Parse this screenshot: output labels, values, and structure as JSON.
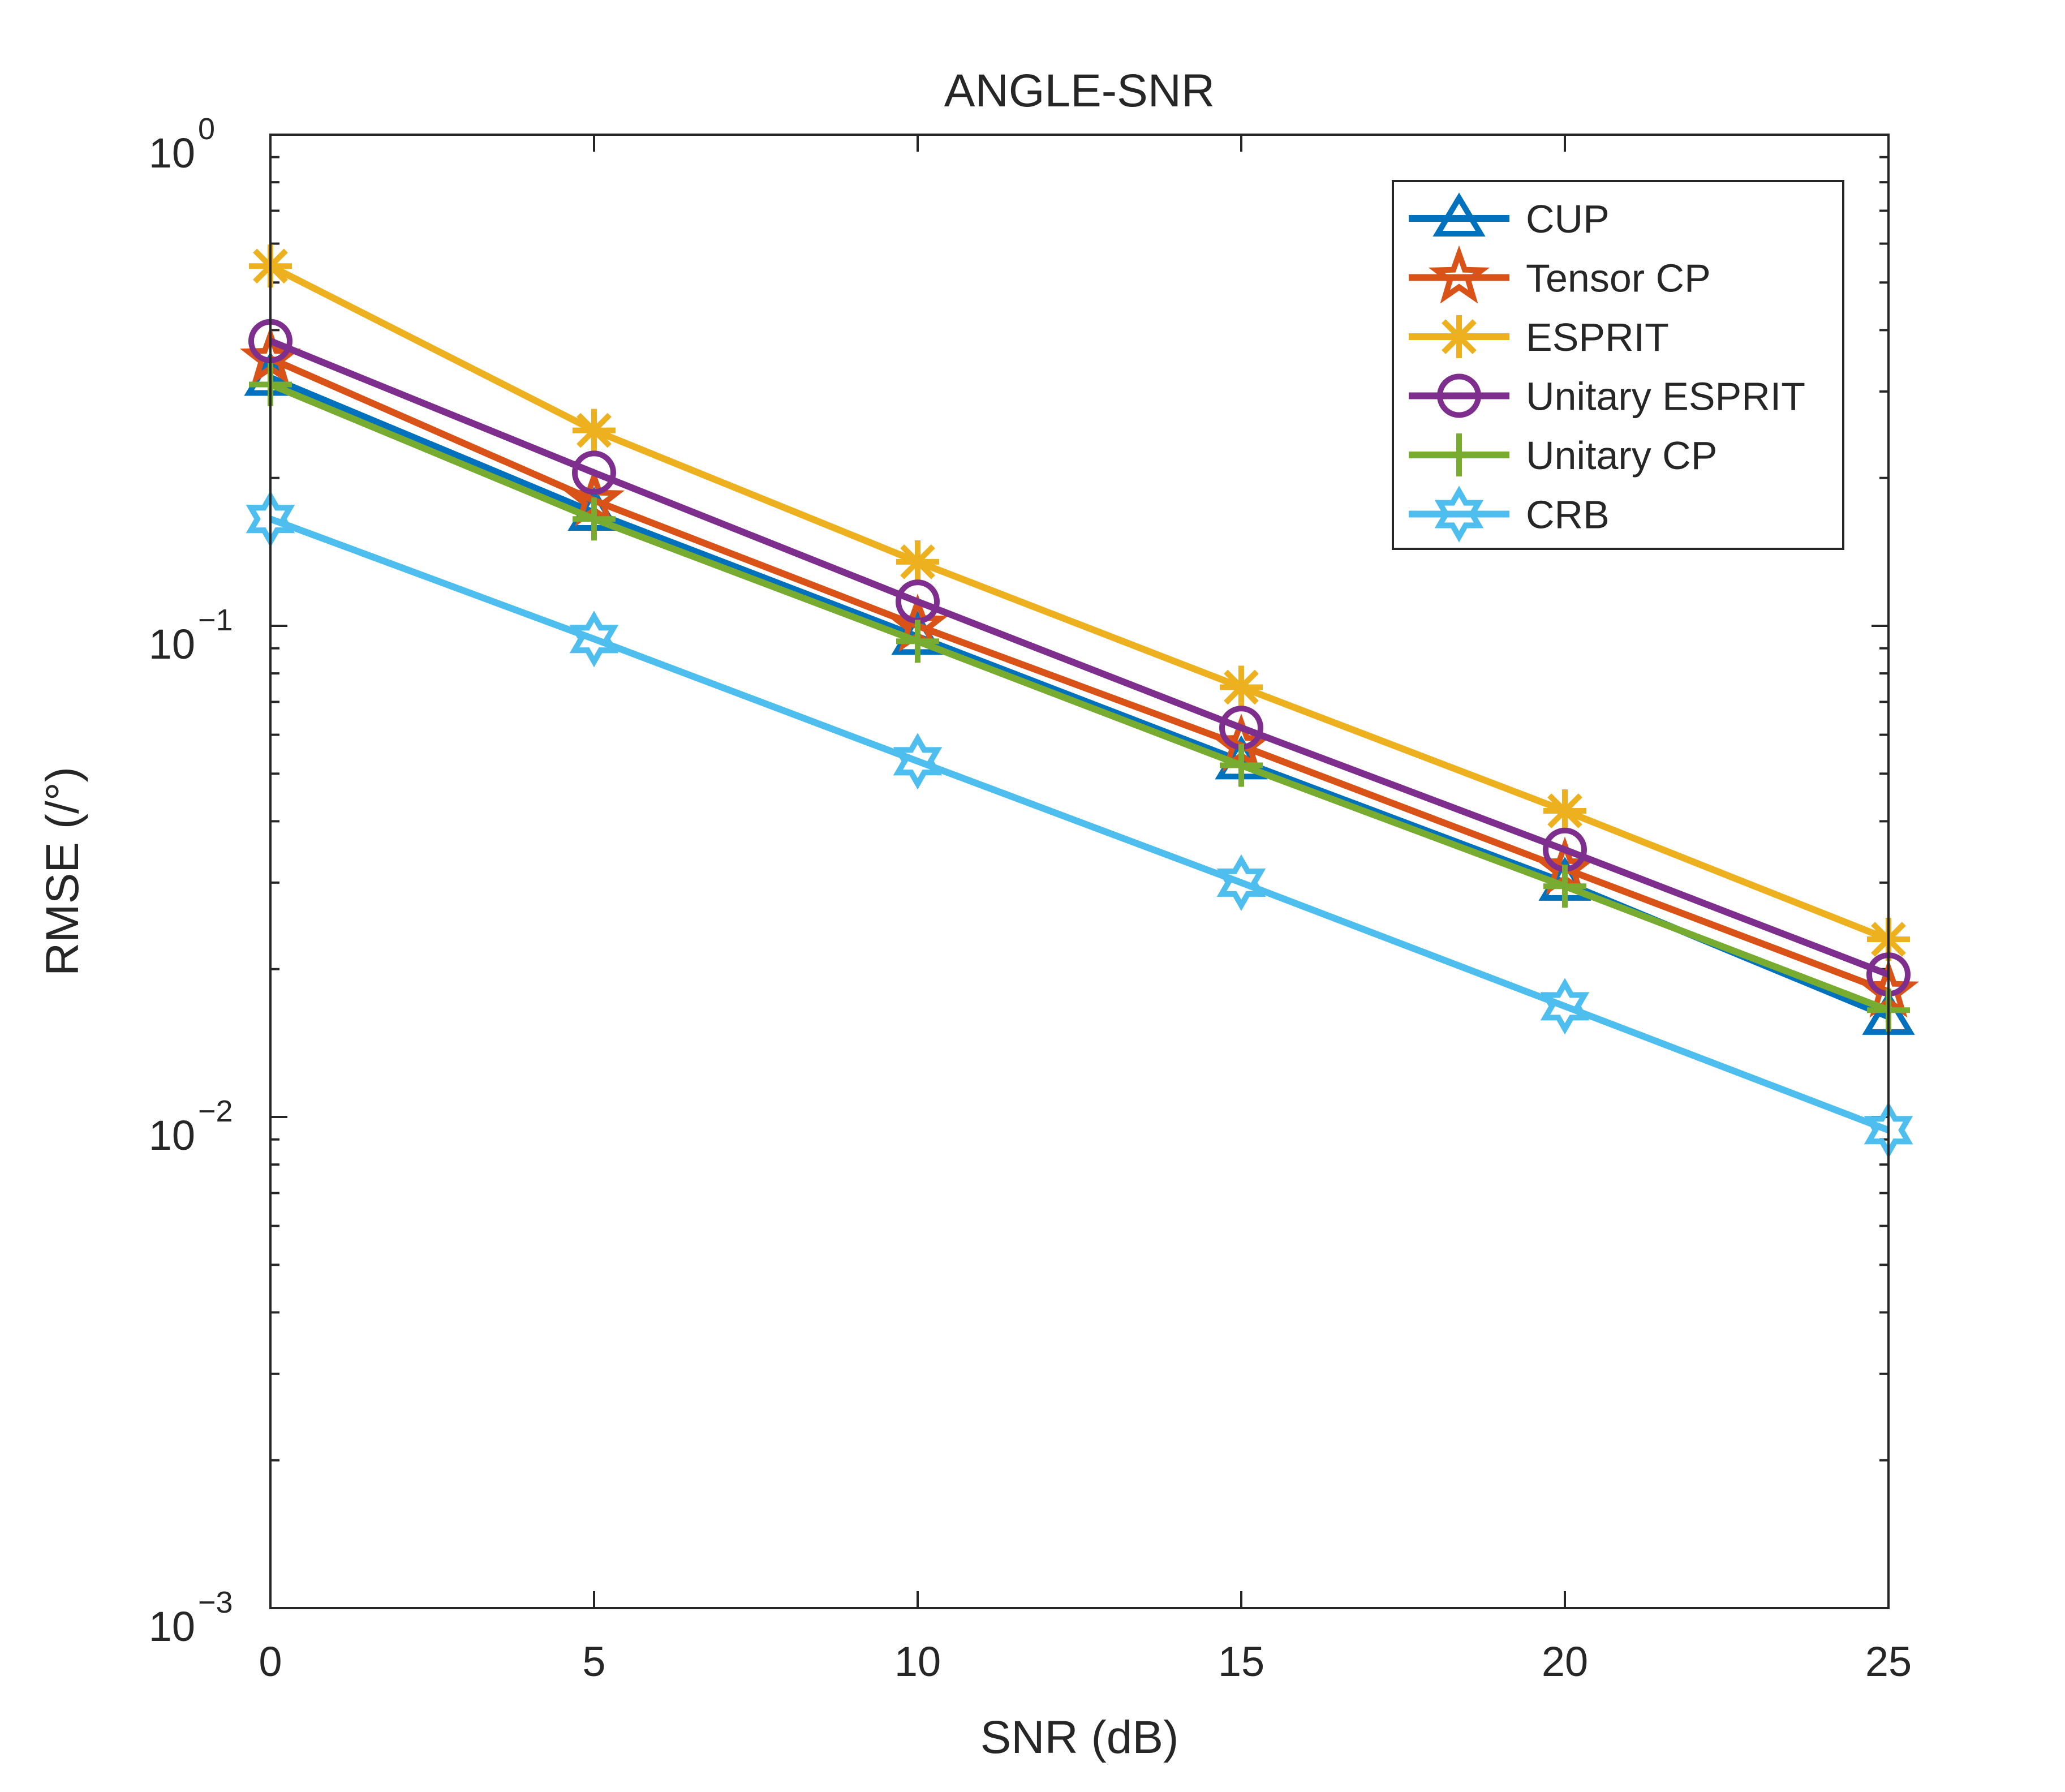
{
  "chart_data": {
    "type": "line",
    "title": "ANGLE-SNR",
    "xlabel": "SNR (dB)",
    "ylabel": "RMSE (/°)",
    "yscale": "log",
    "xlim": [
      0,
      25
    ],
    "ylim": [
      0.001,
      1
    ],
    "grid": false,
    "legend_position": "top-right",
    "x": [
      0,
      5,
      10,
      15,
      20,
      25
    ],
    "x_ticks": [
      {
        "value": 0,
        "label": "0"
      },
      {
        "value": 5,
        "label": "5"
      },
      {
        "value": 10,
        "label": "10"
      },
      {
        "value": 15,
        "label": "15"
      },
      {
        "value": 20,
        "label": "20"
      },
      {
        "value": 25,
        "label": "25"
      }
    ],
    "y_ticks": [
      {
        "value": 1,
        "base": "10",
        "exp": "0"
      },
      {
        "value": 0.1,
        "base": "10",
        "exp": "−1"
      },
      {
        "value": 0.01,
        "base": "10",
        "exp": "−2"
      },
      {
        "value": 0.001,
        "base": "10",
        "exp": "−3"
      }
    ],
    "series": [
      {
        "name": "CUP",
        "color": "#0072BD",
        "marker": "triangle-icon",
        "values": [
          0.32,
          0.17,
          0.095,
          0.053,
          0.03,
          0.016
        ]
      },
      {
        "name": "Tensor CP",
        "color": "#D95319",
        "marker": "pentagram-icon",
        "values": [
          0.35,
          0.18,
          0.1,
          0.057,
          0.032,
          0.018
        ]
      },
      {
        "name": "ESPRIT",
        "color": "#EDB120",
        "marker": "asterisk-icon",
        "values": [
          0.54,
          0.25,
          0.135,
          0.075,
          0.042,
          0.023
        ]
      },
      {
        "name": "Unitary ESPRIT",
        "color": "#7E2F8E",
        "marker": "circle-icon",
        "values": [
          0.38,
          0.205,
          0.112,
          0.062,
          0.035,
          0.0195
        ]
      },
      {
        "name": "Unitary CP",
        "color": "#77AC30",
        "marker": "plus-icon",
        "values": [
          0.31,
          0.165,
          0.093,
          0.052,
          0.0295,
          0.0165
        ]
      },
      {
        "name": "CRB",
        "color": "#4DBEEE",
        "marker": "hexagram-icon",
        "values": [
          0.165,
          0.094,
          0.053,
          0.03,
          0.0168,
          0.0094
        ]
      }
    ]
  }
}
